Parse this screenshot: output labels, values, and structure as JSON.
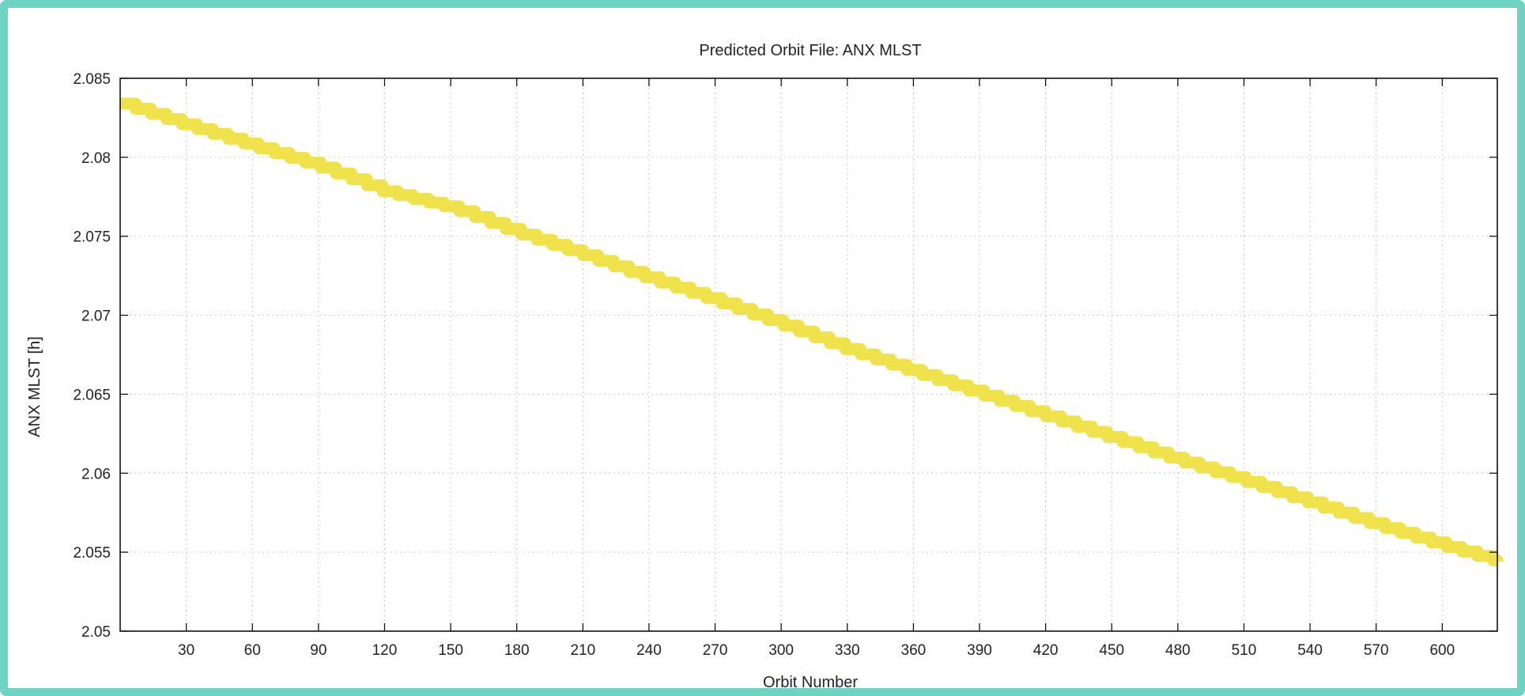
{
  "chart_data": {
    "type": "line",
    "title": "Predicted Orbit File: ANX MLST",
    "xlabel": "Orbit Number",
    "ylabel": "ANX MLST [h]",
    "xlim": [
      0,
      625
    ],
    "ylim": [
      2.05,
      2.085
    ],
    "xticks": [
      30,
      60,
      90,
      120,
      150,
      180,
      210,
      240,
      270,
      300,
      330,
      360,
      390,
      420,
      450,
      480,
      510,
      540,
      570,
      600
    ],
    "yticks": [
      2.05,
      2.055,
      2.06,
      2.065,
      2.07,
      2.075,
      2.08,
      2.085
    ],
    "xtick_labels": [
      "30",
      "60",
      "90",
      "120",
      "150",
      "180",
      "210",
      "240",
      "270",
      "300",
      "330",
      "360",
      "390",
      "420",
      "450",
      "480",
      "510",
      "540",
      "570",
      "600"
    ],
    "ytick_labels": [
      "2.05",
      "2.055",
      "2.06",
      "2.065",
      "2.07",
      "2.075",
      "2.08",
      "2.085"
    ],
    "grid": true,
    "series": [
      {
        "color": "#efe24a",
        "x": [
          0,
          30,
          60,
          90,
          120,
          150,
          180,
          210,
          240,
          270,
          300,
          330,
          360,
          390,
          420,
          450,
          480,
          510,
          540,
          570,
          600,
          625
        ],
        "y": [
          2.0834,
          2.082,
          2.0807,
          2.0794,
          2.0778,
          2.0768,
          2.0752,
          2.0738,
          2.0723,
          2.0709,
          2.0694,
          2.0678,
          2.0664,
          2.065,
          2.0636,
          2.0622,
          2.0608,
          2.0595,
          2.0581,
          2.0567,
          2.0554,
          2.0544
        ]
      }
    ]
  }
}
